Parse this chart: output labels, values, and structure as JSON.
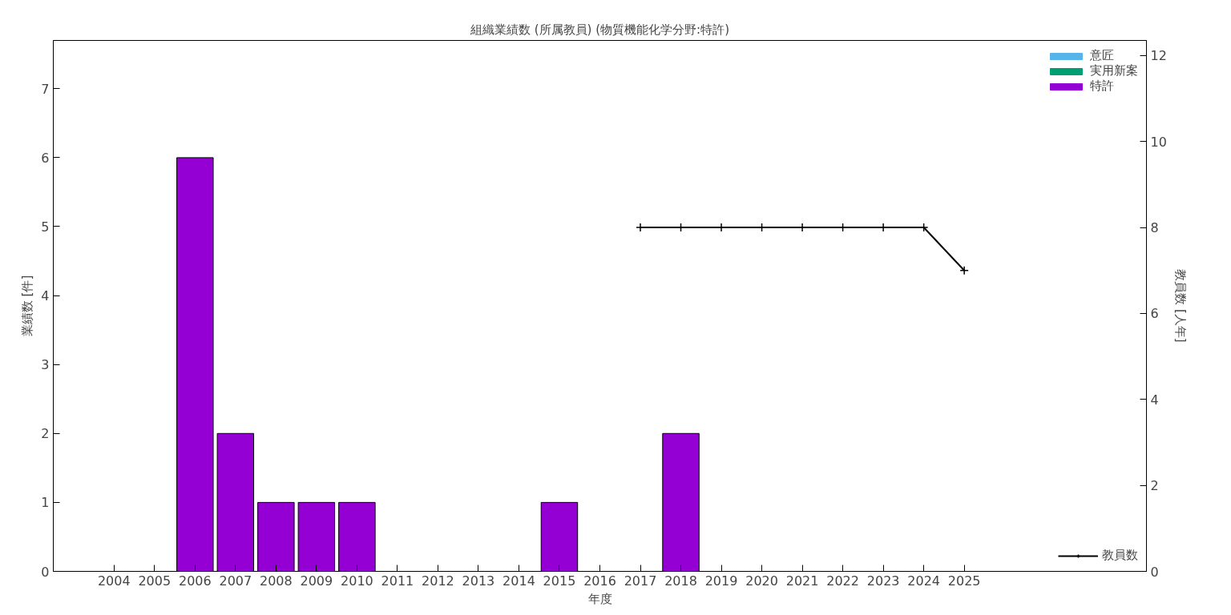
{
  "chart_data": {
    "type": "bar",
    "title": "組織業績数 (所属教員) (物質機能化学分野:特許)",
    "xlabel": "年度",
    "ylabel": "業績数 [件]",
    "y2label": "教員数 [人年]",
    "categories": [
      null,
      "2004",
      "2005",
      "2006",
      "2007",
      "2008",
      "2009",
      "2010",
      "2011",
      "2012",
      "2013",
      "2014",
      "2015",
      "2016",
      "2017",
      "2018",
      "2019",
      "2020",
      "2021",
      "2022",
      "2023",
      "2024",
      "2025",
      null,
      null,
      null,
      null
    ],
    "stacked": true,
    "series": [
      {
        "name": "意匠",
        "color": "#56b4e9",
        "values": [
          null,
          0,
          0,
          0,
          0,
          0,
          0,
          0,
          0,
          0,
          0,
          0,
          0,
          0,
          0,
          0,
          0,
          0,
          0,
          0,
          0,
          0,
          0,
          null,
          null,
          null,
          null
        ]
      },
      {
        "name": "実用新案",
        "color": "#009e73",
        "values": [
          null,
          0,
          0,
          0,
          0,
          0,
          0,
          0,
          0,
          0,
          0,
          0,
          0,
          0,
          0,
          0,
          0,
          0,
          0,
          0,
          0,
          0,
          0,
          null,
          null,
          null,
          null
        ]
      },
      {
        "name": "特許",
        "color": "#9400d3",
        "values": [
          null,
          0,
          0,
          6,
          2,
          1,
          1,
          1,
          0,
          0,
          0,
          0,
          1,
          0,
          0,
          2,
          0,
          0,
          0,
          0,
          0,
          0,
          0,
          null,
          null,
          null,
          null
        ]
      },
      {
        "name": "教員数",
        "type": "line",
        "axis": "y2",
        "color": "#000000",
        "marker": "cross",
        "values": [
          null,
          null,
          null,
          null,
          null,
          null,
          null,
          null,
          null,
          null,
          null,
          null,
          null,
          null,
          8,
          8,
          8,
          8,
          8,
          8,
          8,
          8,
          7,
          null,
          null,
          null,
          null
        ]
      }
    ],
    "ylim": [
      0,
      7.7
    ],
    "yticks": [
      0,
      1,
      2,
      3,
      4,
      5,
      6,
      7
    ],
    "y2lim": [
      0,
      12.35
    ],
    "y2ticks": [
      0,
      2,
      4,
      6,
      8,
      10,
      12
    ],
    "grid": false,
    "legend": "top right"
  }
}
